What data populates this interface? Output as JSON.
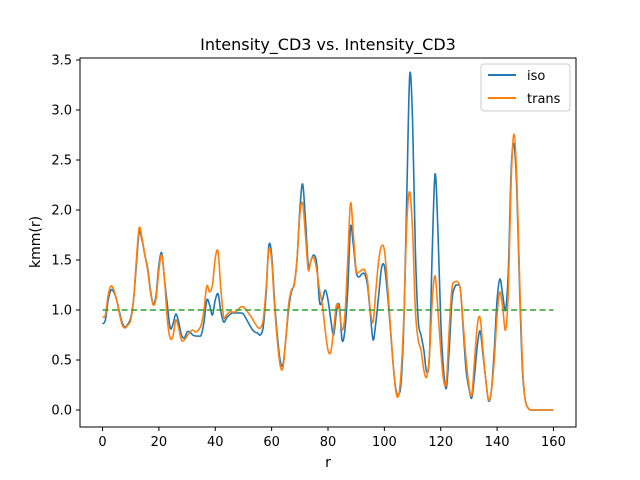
{
  "chart_data": {
    "type": "line",
    "title": "Intensity_CD3 vs. Intensity_CD3",
    "xlabel": "r",
    "ylabel": "kmm(r)",
    "xlim": [
      -8,
      168
    ],
    "ylim": [
      -0.17,
      3.52
    ],
    "xticks": [
      0,
      20,
      40,
      60,
      80,
      100,
      120,
      140,
      160
    ],
    "yticks": [
      0.0,
      0.5,
      1.0,
      1.5,
      2.0,
      2.5,
      3.0,
      3.5
    ],
    "xtick_labels": [
      "0",
      "20",
      "40",
      "60",
      "80",
      "100",
      "120",
      "140",
      "160"
    ],
    "ytick_labels": [
      "0.0",
      "0.5",
      "1.0",
      "1.5",
      "2.0",
      "2.5",
      "3.0",
      "3.5"
    ],
    "grid": false,
    "legend_position": "top-right",
    "series": [
      {
        "name": "iso",
        "color": "#1f77b4",
        "style": "solid",
        "points": [
          [
            0,
            0.86
          ],
          [
            1,
            0.9
          ],
          [
            2,
            1.1
          ],
          [
            3,
            1.2
          ],
          [
            4,
            1.18
          ],
          [
            5,
            1.1
          ],
          [
            6,
            0.98
          ],
          [
            7,
            0.87
          ],
          [
            8,
            0.83
          ],
          [
            9,
            0.86
          ],
          [
            10,
            0.92
          ],
          [
            11,
            1.1
          ],
          [
            12,
            1.45
          ],
          [
            13,
            1.78
          ],
          [
            14,
            1.7
          ],
          [
            15,
            1.55
          ],
          [
            16,
            1.42
          ],
          [
            17,
            1.2
          ],
          [
            18,
            1.06
          ],
          [
            19,
            1.15
          ],
          [
            20,
            1.45
          ],
          [
            21,
            1.57
          ],
          [
            22,
            1.3
          ],
          [
            23,
            1.05
          ],
          [
            24,
            0.82
          ],
          [
            25,
            0.86
          ],
          [
            26,
            0.96
          ],
          [
            27,
            0.88
          ],
          [
            28,
            0.75
          ],
          [
            29,
            0.72
          ],
          [
            30,
            0.78
          ],
          [
            31,
            0.78
          ],
          [
            32,
            0.75
          ],
          [
            33,
            0.74
          ],
          [
            34,
            0.74
          ],
          [
            35,
            0.75
          ],
          [
            36,
            0.88
          ],
          [
            37,
            1.1
          ],
          [
            38,
            1.05
          ],
          [
            39,
            0.95
          ],
          [
            40,
            1.1
          ],
          [
            41,
            1.16
          ],
          [
            42,
            0.98
          ],
          [
            43,
            0.88
          ],
          [
            44,
            0.92
          ],
          [
            45,
            0.95
          ],
          [
            46,
            0.97
          ],
          [
            47,
            0.97
          ],
          [
            48,
            0.97
          ],
          [
            49,
            0.97
          ],
          [
            50,
            0.96
          ],
          [
            51,
            0.91
          ],
          [
            52,
            0.86
          ],
          [
            53,
            0.81
          ],
          [
            54,
            0.78
          ],
          [
            55,
            0.77
          ],
          [
            56,
            0.75
          ],
          [
            57,
            0.83
          ],
          [
            58,
            1.15
          ],
          [
            59,
            1.64
          ],
          [
            60,
            1.55
          ],
          [
            61,
            1.1
          ],
          [
            62,
            0.75
          ],
          [
            63,
            0.5
          ],
          [
            64,
            0.45
          ],
          [
            65,
            0.7
          ],
          [
            66,
            1.0
          ],
          [
            67,
            1.18
          ],
          [
            68,
            1.26
          ],
          [
            69,
            1.5
          ],
          [
            70,
            2.0
          ],
          [
            71,
            2.26
          ],
          [
            72,
            1.9
          ],
          [
            73,
            1.45
          ],
          [
            74,
            1.5
          ],
          [
            75,
            1.55
          ],
          [
            76,
            1.46
          ],
          [
            77,
            1.08
          ],
          [
            78,
            1.1
          ],
          [
            79,
            1.2
          ],
          [
            80,
            1.1
          ],
          [
            81,
            0.9
          ],
          [
            82,
            0.75
          ],
          [
            83,
            0.98
          ],
          [
            84,
            1.05
          ],
          [
            85,
            0.7
          ],
          [
            86,
            0.8
          ],
          [
            87,
            1.2
          ],
          [
            88,
            1.83
          ],
          [
            89,
            1.65
          ],
          [
            90,
            1.38
          ],
          [
            91,
            1.33
          ],
          [
            92,
            1.36
          ],
          [
            93,
            1.36
          ],
          [
            94,
            1.25
          ],
          [
            95,
            0.97
          ],
          [
            96,
            0.7
          ],
          [
            97,
            0.88
          ],
          [
            98,
            1.15
          ],
          [
            99,
            1.42
          ],
          [
            100,
            1.44
          ],
          [
            101,
            1.2
          ],
          [
            102,
            0.86
          ],
          [
            103,
            0.5
          ],
          [
            104,
            0.22
          ],
          [
            105,
            0.15
          ],
          [
            106,
            0.3
          ],
          [
            107,
            0.95
          ],
          [
            108,
            2.2
          ],
          [
            109,
            3.35
          ],
          [
            110,
            2.9
          ],
          [
            111,
            1.6
          ],
          [
            112,
            0.9
          ],
          [
            113,
            0.75
          ],
          [
            114,
            0.6
          ],
          [
            115,
            0.38
          ],
          [
            116,
            0.55
          ],
          [
            117,
            1.6
          ],
          [
            118,
            2.36
          ],
          [
            119,
            1.8
          ],
          [
            120,
            0.9
          ],
          [
            121,
            0.4
          ],
          [
            122,
            0.22
          ],
          [
            123,
            0.6
          ],
          [
            124,
            1.1
          ],
          [
            125,
            1.23
          ],
          [
            126,
            1.25
          ],
          [
            127,
            1.2
          ],
          [
            128,
            0.8
          ],
          [
            129,
            0.4
          ],
          [
            130,
            0.22
          ],
          [
            131,
            0.12
          ],
          [
            132,
            0.35
          ],
          [
            133,
            0.65
          ],
          [
            134,
            0.79
          ],
          [
            135,
            0.55
          ],
          [
            136,
            0.3
          ],
          [
            137,
            0.09
          ],
          [
            138,
            0.2
          ],
          [
            139,
            0.6
          ],
          [
            140,
            1.1
          ],
          [
            141,
            1.31
          ],
          [
            142,
            1.15
          ],
          [
            143,
            1.0
          ],
          [
            144,
            1.4
          ],
          [
            145,
            2.4
          ],
          [
            146,
            2.66
          ],
          [
            147,
            2.2
          ],
          [
            148,
            1.2
          ],
          [
            149,
            0.4
          ],
          [
            150,
            0.1
          ],
          [
            151,
            0.02
          ],
          [
            152,
            0.0
          ],
          [
            153,
            0.0
          ],
          [
            154,
            0.0
          ],
          [
            156,
            0.0
          ],
          [
            158,
            0.0
          ],
          [
            160,
            0.0
          ]
        ]
      },
      {
        "name": "trans",
        "color": "#ff7f0e",
        "style": "solid",
        "points": [
          [
            0,
            0.93
          ],
          [
            1,
            0.95
          ],
          [
            2,
            1.15
          ],
          [
            3,
            1.24
          ],
          [
            4,
            1.2
          ],
          [
            5,
            1.1
          ],
          [
            6,
            0.96
          ],
          [
            7,
            0.85
          ],
          [
            8,
            0.82
          ],
          [
            9,
            0.85
          ],
          [
            10,
            0.9
          ],
          [
            11,
            1.1
          ],
          [
            12,
            1.5
          ],
          [
            13,
            1.82
          ],
          [
            14,
            1.72
          ],
          [
            15,
            1.55
          ],
          [
            16,
            1.4
          ],
          [
            17,
            1.18
          ],
          [
            18,
            1.05
          ],
          [
            19,
            1.12
          ],
          [
            20,
            1.4
          ],
          [
            21,
            1.55
          ],
          [
            22,
            1.3
          ],
          [
            23,
            0.9
          ],
          [
            24,
            0.72
          ],
          [
            25,
            0.74
          ],
          [
            26,
            0.9
          ],
          [
            27,
            0.82
          ],
          [
            28,
            0.7
          ],
          [
            29,
            0.7
          ],
          [
            30,
            0.74
          ],
          [
            31,
            0.78
          ],
          [
            32,
            0.8
          ],
          [
            33,
            0.78
          ],
          [
            34,
            0.8
          ],
          [
            35,
            0.85
          ],
          [
            36,
            1.0
          ],
          [
            37,
            1.24
          ],
          [
            38,
            1.18
          ],
          [
            39,
            1.25
          ],
          [
            40,
            1.52
          ],
          [
            41,
            1.58
          ],
          [
            42,
            1.2
          ],
          [
            43,
            0.93
          ],
          [
            44,
            0.95
          ],
          [
            45,
            0.98
          ],
          [
            46,
            0.98
          ],
          [
            47,
            0.98
          ],
          [
            48,
            1.0
          ],
          [
            49,
            1.03
          ],
          [
            50,
            1.03
          ],
          [
            51,
            1.0
          ],
          [
            52,
            0.96
          ],
          [
            53,
            0.92
          ],
          [
            54,
            0.87
          ],
          [
            55,
            0.83
          ],
          [
            56,
            0.82
          ],
          [
            57,
            0.9
          ],
          [
            58,
            1.2
          ],
          [
            59,
            1.6
          ],
          [
            60,
            1.5
          ],
          [
            61,
            1.05
          ],
          [
            62,
            0.7
          ],
          [
            63,
            0.45
          ],
          [
            64,
            0.42
          ],
          [
            65,
            0.7
          ],
          [
            66,
            1.05
          ],
          [
            67,
            1.2
          ],
          [
            68,
            1.25
          ],
          [
            69,
            1.5
          ],
          [
            70,
            1.95
          ],
          [
            71,
            2.07
          ],
          [
            72,
            1.75
          ],
          [
            73,
            1.4
          ],
          [
            74,
            1.5
          ],
          [
            75,
            1.52
          ],
          [
            76,
            1.4
          ],
          [
            77,
            1.2
          ],
          [
            78,
            1.05
          ],
          [
            79,
            0.8
          ],
          [
            80,
            0.6
          ],
          [
            81,
            0.58
          ],
          [
            82,
            0.8
          ],
          [
            83,
            1.05
          ],
          [
            84,
            1.0
          ],
          [
            85,
            0.8
          ],
          [
            86,
            0.95
          ],
          [
            87,
            1.5
          ],
          [
            88,
            2.07
          ],
          [
            89,
            1.75
          ],
          [
            90,
            1.4
          ],
          [
            91,
            1.38
          ],
          [
            92,
            1.4
          ],
          [
            93,
            1.4
          ],
          [
            94,
            1.3
          ],
          [
            95,
            1.0
          ],
          [
            96,
            0.88
          ],
          [
            97,
            1.2
          ],
          [
            98,
            1.5
          ],
          [
            99,
            1.64
          ],
          [
            100,
            1.6
          ],
          [
            101,
            1.3
          ],
          [
            102,
            0.9
          ],
          [
            103,
            0.5
          ],
          [
            104,
            0.2
          ],
          [
            105,
            0.14
          ],
          [
            106,
            0.4
          ],
          [
            107,
            1.0
          ],
          [
            108,
            1.9
          ],
          [
            109,
            2.18
          ],
          [
            110,
            1.8
          ],
          [
            111,
            1.0
          ],
          [
            112,
            0.7
          ],
          [
            113,
            0.6
          ],
          [
            114,
            0.4
          ],
          [
            115,
            0.33
          ],
          [
            116,
            0.55
          ],
          [
            117,
            1.1
          ],
          [
            118,
            1.34
          ],
          [
            119,
            1.0
          ],
          [
            120,
            0.6
          ],
          [
            121,
            0.3
          ],
          [
            122,
            0.28
          ],
          [
            123,
            0.8
          ],
          [
            124,
            1.22
          ],
          [
            125,
            1.28
          ],
          [
            126,
            1.28
          ],
          [
            127,
            1.2
          ],
          [
            128,
            0.85
          ],
          [
            129,
            0.5
          ],
          [
            130,
            0.25
          ],
          [
            131,
            0.15
          ],
          [
            132,
            0.5
          ],
          [
            133,
            0.85
          ],
          [
            134,
            0.92
          ],
          [
            135,
            0.6
          ],
          [
            136,
            0.3
          ],
          [
            137,
            0.1
          ],
          [
            138,
            0.2
          ],
          [
            139,
            0.5
          ],
          [
            140,
            0.95
          ],
          [
            141,
            1.18
          ],
          [
            142,
            1.02
          ],
          [
            143,
            0.8
          ],
          [
            144,
            1.2
          ],
          [
            145,
            2.3
          ],
          [
            146,
            2.76
          ],
          [
            147,
            2.3
          ],
          [
            148,
            1.3
          ],
          [
            149,
            0.45
          ],
          [
            150,
            0.1
          ],
          [
            151,
            0.02
          ],
          [
            152,
            0.0
          ],
          [
            153,
            0.0
          ],
          [
            154,
            0.0
          ],
          [
            156,
            0.0
          ],
          [
            158,
            0.0
          ],
          [
            160,
            0.0
          ]
        ]
      },
      {
        "name": "",
        "color": "#2ca02c",
        "style": "dashed",
        "points": [
          [
            0,
            1.0
          ],
          [
            160,
            1.0
          ]
        ]
      }
    ]
  }
}
